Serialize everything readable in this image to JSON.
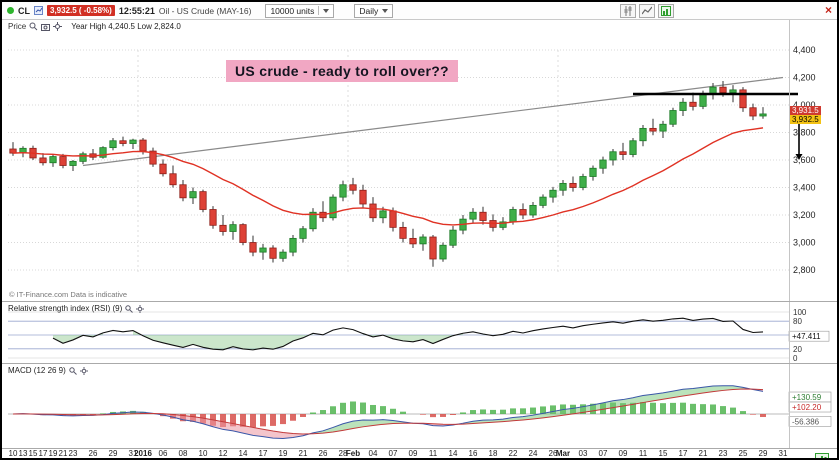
{
  "toolbar": {
    "symbol": "CL",
    "price_badge": "3,932.5 ( -0.58%)",
    "time": "12:55:21",
    "instrument": "Oil - US Crude (MAY-16)",
    "units_dropdown": "10000 units",
    "timeframe_dropdown": "Daily"
  },
  "chart_header": {
    "price_label": "Price",
    "range_label": "Year High 4,240.5 Low 2,824.0"
  },
  "annotation_text": "US crude - ready to roll over??",
  "copyright": "© IT-Finance.com Data is indicative",
  "price_axis": {
    "ticks": [
      {
        "p": 4400,
        "t": "4,400"
      },
      {
        "p": 4200,
        "t": "4,200"
      },
      {
        "p": 4000,
        "t": "4,000"
      },
      {
        "p": 3800,
        "t": "3,800"
      },
      {
        "p": 3600,
        "t": "3,600"
      },
      {
        "p": 3400,
        "t": "3,400"
      },
      {
        "p": 3200,
        "t": "3,200"
      },
      {
        "p": 3000,
        "t": "3,000"
      },
      {
        "p": 2800,
        "t": "2,800"
      }
    ],
    "last_trade_label": "3,931.5",
    "last_price_label": "3,932.5"
  },
  "rsi_panel": {
    "label": "Relative strength index (RSI) (9)",
    "period": 9,
    "ticks": [
      {
        "v": 100,
        "t": "100"
      },
      {
        "v": 80,
        "t": "80"
      },
      {
        "v": 50,
        "t": "50"
      },
      {
        "v": 20,
        "t": "20"
      },
      {
        "v": 0,
        "t": "0"
      }
    ],
    "value": 47.411,
    "value_label": "+47.411"
  },
  "macd_panel": {
    "label": "MACD (12 26 9)",
    "params": [
      12,
      26,
      9
    ],
    "value_labels": [
      {
        "v": 130.59,
        "t": "+130.59",
        "color": "#2e7d32"
      },
      {
        "v": 102.2,
        "t": "+102.20",
        "color": "#c62828"
      },
      {
        "v": -56.386,
        "t": "-56.386",
        "color": "#555555"
      }
    ]
  },
  "chart_data": {
    "type": "candlestick",
    "title": "Oil - US Crude (MAY-16) Daily",
    "price_range": [
      2800,
      4400
    ],
    "grid_step": 200,
    "year_high": 4240.5,
    "year_low": 2824.0,
    "last_price": 3932.5,
    "change_pct": -0.58,
    "slots": 78,
    "month_start_indices": [
      13,
      34,
      55
    ],
    "x_ticks": [
      {
        "i": 0,
        "t": "10"
      },
      {
        "i": 1,
        "t": "13"
      },
      {
        "i": 2,
        "t": "15"
      },
      {
        "i": 3,
        "t": "17"
      },
      {
        "i": 4,
        "t": "19"
      },
      {
        "i": 5,
        "t": "21"
      },
      {
        "i": 6,
        "t": "23"
      },
      {
        "i": 8,
        "t": "26"
      },
      {
        "i": 10,
        "t": "29"
      },
      {
        "i": 12,
        "t": "31"
      },
      {
        "i": 13,
        "t": "2016",
        "b": 1
      },
      {
        "i": 15,
        "t": "06"
      },
      {
        "i": 17,
        "t": "08"
      },
      {
        "i": 19,
        "t": "10"
      },
      {
        "i": 21,
        "t": "12"
      },
      {
        "i": 23,
        "t": "14"
      },
      {
        "i": 25,
        "t": "17"
      },
      {
        "i": 27,
        "t": "19"
      },
      {
        "i": 29,
        "t": "21"
      },
      {
        "i": 31,
        "t": "26"
      },
      {
        "i": 33,
        "t": "28"
      },
      {
        "i": 34,
        "t": "Feb",
        "b": 1
      },
      {
        "i": 36,
        "t": "04"
      },
      {
        "i": 38,
        "t": "07"
      },
      {
        "i": 40,
        "t": "09"
      },
      {
        "i": 42,
        "t": "11"
      },
      {
        "i": 44,
        "t": "14"
      },
      {
        "i": 46,
        "t": "16"
      },
      {
        "i": 48,
        "t": "18"
      },
      {
        "i": 50,
        "t": "22"
      },
      {
        "i": 52,
        "t": "24"
      },
      {
        "i": 54,
        "t": "26"
      },
      {
        "i": 55,
        "t": "Mar",
        "b": 1
      },
      {
        "i": 57,
        "t": "03"
      },
      {
        "i": 59,
        "t": "07"
      },
      {
        "i": 61,
        "t": "09"
      },
      {
        "i": 63,
        "t": "11"
      },
      {
        "i": 65,
        "t": "15"
      },
      {
        "i": 67,
        "t": "17"
      },
      {
        "i": 69,
        "t": "21"
      },
      {
        "i": 71,
        "t": "23"
      },
      {
        "i": 73,
        "t": "25"
      },
      {
        "i": 75,
        "t": "29"
      },
      {
        "i": 77,
        "t": "31"
      }
    ],
    "candles": [
      [
        3680,
        3730,
        3630,
        3650
      ],
      [
        3650,
        3700,
        3620,
        3685
      ],
      [
        3685,
        3705,
        3600,
        3615
      ],
      [
        3615,
        3650,
        3560,
        3580
      ],
      [
        3580,
        3640,
        3550,
        3625
      ],
      [
        3625,
        3645,
        3540,
        3560
      ],
      [
        3560,
        3600,
        3520,
        3590
      ],
      [
        3590,
        3660,
        3570,
        3645
      ],
      [
        3645,
        3680,
        3600,
        3620
      ],
      [
        3620,
        3700,
        3610,
        3690
      ],
      [
        3690,
        3760,
        3670,
        3740
      ],
      [
        3740,
        3770,
        3700,
        3720
      ],
      [
        3720,
        3755,
        3680,
        3745
      ],
      [
        3745,
        3760,
        3640,
        3665
      ],
      [
        3665,
        3690,
        3550,
        3570
      ],
      [
        3570,
        3605,
        3480,
        3500
      ],
      [
        3500,
        3560,
        3400,
        3420
      ],
      [
        3420,
        3455,
        3300,
        3325
      ],
      [
        3325,
        3400,
        3280,
        3370
      ],
      [
        3370,
        3385,
        3220,
        3240
      ],
      [
        3240,
        3265,
        3100,
        3125
      ],
      [
        3125,
        3200,
        3050,
        3080
      ],
      [
        3080,
        3155,
        3020,
        3130
      ],
      [
        3130,
        3140,
        2980,
        3000
      ],
      [
        3000,
        3050,
        2900,
        2930
      ],
      [
        2930,
        2990,
        2875,
        2960
      ],
      [
        2960,
        2980,
        2855,
        2885
      ],
      [
        2885,
        2950,
        2860,
        2930
      ],
      [
        2930,
        3055,
        2900,
        3030
      ],
      [
        3030,
        3120,
        3000,
        3100
      ],
      [
        3100,
        3250,
        3080,
        3220
      ],
      [
        3220,
        3300,
        3150,
        3180
      ],
      [
        3180,
        3350,
        3160,
        3330
      ],
      [
        3330,
        3450,
        3300,
        3420
      ],
      [
        3420,
        3470,
        3350,
        3380
      ],
      [
        3380,
        3420,
        3250,
        3280
      ],
      [
        3280,
        3330,
        3150,
        3180
      ],
      [
        3180,
        3260,
        3140,
        3230
      ],
      [
        3230,
        3255,
        3080,
        3110
      ],
      [
        3110,
        3150,
        3000,
        3030
      ],
      [
        3030,
        3100,
        2960,
        2990
      ],
      [
        2990,
        3060,
        2940,
        3040
      ],
      [
        3040,
        3055,
        2824,
        2880
      ],
      [
        2880,
        3000,
        2860,
        2980
      ],
      [
        2980,
        3120,
        2960,
        3090
      ],
      [
        3090,
        3200,
        3060,
        3170
      ],
      [
        3170,
        3250,
        3140,
        3220
      ],
      [
        3220,
        3260,
        3130,
        3160
      ],
      [
        3160,
        3205,
        3080,
        3110
      ],
      [
        3110,
        3185,
        3090,
        3150
      ],
      [
        3150,
        3260,
        3130,
        3240
      ],
      [
        3240,
        3285,
        3170,
        3200
      ],
      [
        3200,
        3295,
        3180,
        3270
      ],
      [
        3270,
        3350,
        3250,
        3330
      ],
      [
        3330,
        3405,
        3290,
        3380
      ],
      [
        3380,
        3455,
        3340,
        3430
      ],
      [
        3430,
        3480,
        3370,
        3400
      ],
      [
        3400,
        3500,
        3380,
        3480
      ],
      [
        3480,
        3560,
        3450,
        3540
      ],
      [
        3540,
        3625,
        3500,
        3600
      ],
      [
        3600,
        3680,
        3560,
        3660
      ],
      [
        3660,
        3725,
        3600,
        3640
      ],
      [
        3640,
        3760,
        3620,
        3740
      ],
      [
        3740,
        3855,
        3700,
        3830
      ],
      [
        3830,
        3900,
        3780,
        3810
      ],
      [
        3810,
        3885,
        3760,
        3860
      ],
      [
        3860,
        3980,
        3840,
        3960
      ],
      [
        3960,
        4050,
        3920,
        4020
      ],
      [
        4020,
        4090,
        3960,
        3990
      ],
      [
        3990,
        4105,
        3970,
        4080
      ],
      [
        4080,
        4160,
        4040,
        4130
      ],
      [
        4130,
        4175,
        4060,
        4090
      ],
      [
        4090,
        4145,
        4020,
        4110
      ],
      [
        4110,
        4130,
        3950,
        3980
      ],
      [
        3980,
        4010,
        3890,
        3920
      ],
      [
        3920,
        3985,
        3900,
        3935
      ]
    ],
    "overlays": {
      "moving_average": {
        "type": "ema",
        "period": 20,
        "color": "#e03224"
      },
      "trendline": {
        "i1": 7,
        "p1": 3560,
        "i2": 77,
        "p2": 4200
      },
      "resistance": {
        "i1": 62,
        "i2": 78.5,
        "p": 4080
      },
      "arrow": {
        "i": 78.6,
        "p_from": 3900,
        "p_to": 3600
      }
    },
    "indicators": {
      "rsi": {
        "period": 9,
        "last": 47.411
      },
      "macd": {
        "fast": 12,
        "slow": 26,
        "signal": 9
      }
    }
  }
}
